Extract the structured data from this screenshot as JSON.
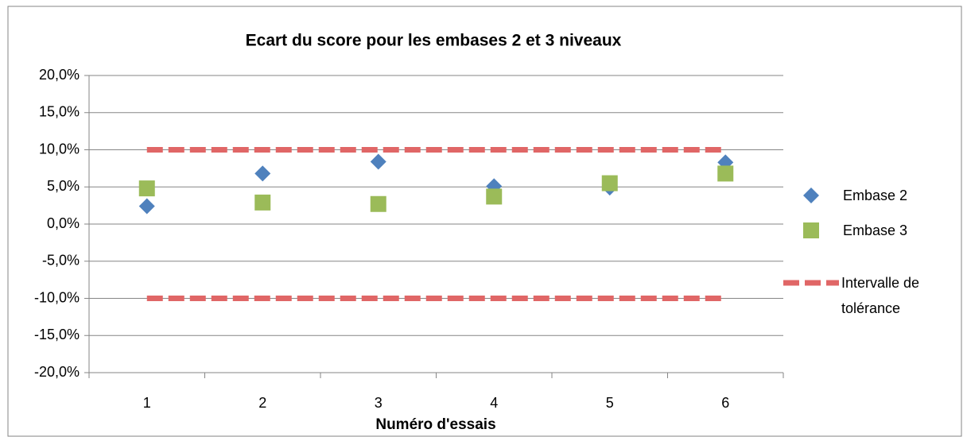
{
  "chart_data": {
    "type": "scatter",
    "title": "Ecart du score pour les embases 2 et 3 niveaux",
    "x_label": "Numéro d'essais",
    "categories": [
      "1",
      "2",
      "3",
      "4",
      "5",
      "6"
    ],
    "series": [
      {
        "name": "Embase 2",
        "color": "#4f81bd",
        "marker": "diamond",
        "values": [
          2.4,
          6.8,
          8.4,
          5.1,
          4.9,
          8.3
        ]
      },
      {
        "name": "Embase 3",
        "color": "#9bbb59",
        "marker": "square",
        "values": [
          4.8,
          2.9,
          2.7,
          3.7,
          5.5,
          6.8
        ]
      },
      {
        "name": "Intervalle de tolérance",
        "color": "#e06666",
        "marker": "dashed-line",
        "values": [
          10,
          10,
          10,
          10,
          10,
          10
        ],
        "lower": [
          -10,
          -10,
          -10,
          -10,
          -10,
          -10
        ]
      }
    ],
    "ylim": [
      -20,
      20
    ],
    "yticks": [
      {
        "value": -20,
        "label": "-20,0%"
      },
      {
        "value": -15,
        "label": "-15,0%"
      },
      {
        "value": -10,
        "label": "-10,0%"
      },
      {
        "value": -5,
        "label": "-5,0%"
      },
      {
        "value": 0,
        "label": "0,0%"
      },
      {
        "value": 5,
        "label": "5,0%"
      },
      {
        "value": 10,
        "label": "10,0%"
      },
      {
        "value": 15,
        "label": "15,0%"
      },
      {
        "value": 20,
        "label": "20,0%"
      }
    ],
    "grid": true,
    "legend": "right"
  }
}
